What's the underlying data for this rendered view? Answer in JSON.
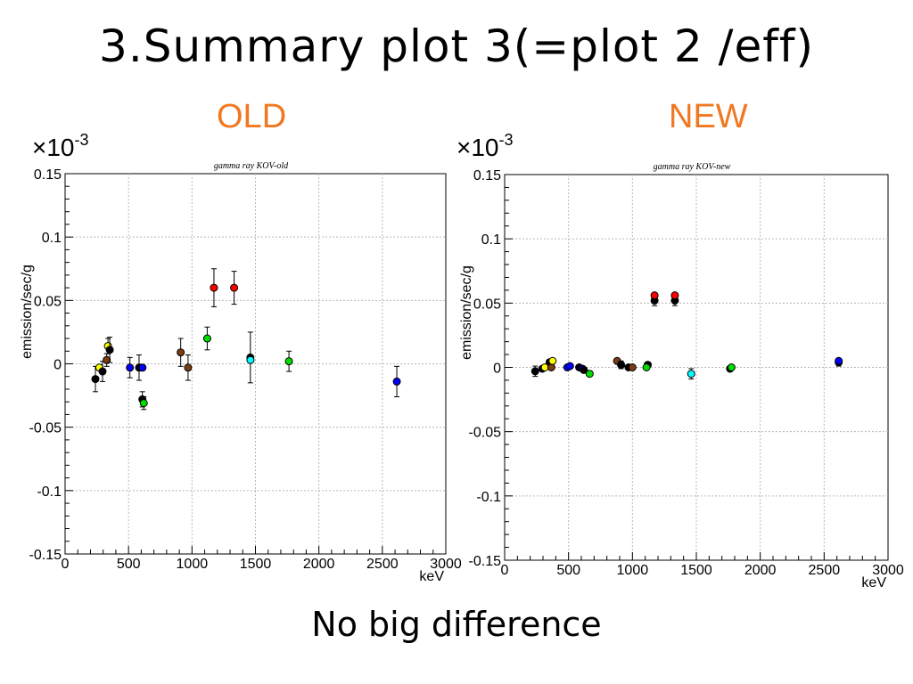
{
  "slide": {
    "title": "3.Summary plot 3(=plot 2 /eff)",
    "footer": "No big difference",
    "colors": {
      "panel_label": "#f07820"
    }
  },
  "chart_data": [
    {
      "type": "scatter",
      "panel_label": "OLD",
      "multiplier": "×10",
      "multiplier_exp": "-3",
      "title": "gamma ray KOV-old",
      "xlabel": "keV",
      "ylabel": "emission/sec/g",
      "xlim": [
        0,
        3000
      ],
      "ylim": [
        -0.15,
        0.15
      ],
      "x_ticks": [
        0,
        500,
        1000,
        1500,
        2000,
        2500,
        3000
      ],
      "y_ticks": [
        0.15,
        0.1,
        0.05,
        0,
        -0.05,
        -0.1,
        -0.15
      ],
      "x_tick_labels": [
        "0",
        "500",
        "1000",
        "1500",
        "2000",
        "2500",
        "3000"
      ],
      "y_tick_labels": [
        "0.15",
        "0.1",
        "0.05",
        "0",
        "-0.05",
        "-0.1",
        "-0.15"
      ],
      "grid": true,
      "points": [
        {
          "x": 239,
          "y": -0.012,
          "err": 0.01,
          "color": "#000000"
        },
        {
          "x": 270,
          "y": -0.003,
          "err": 0,
          "color": "#ffff00"
        },
        {
          "x": 295,
          "y": -0.006,
          "err": 0.008,
          "color": "#000000"
        },
        {
          "x": 328,
          "y": 0.003,
          "err": 0.005,
          "color": "#7a3c12"
        },
        {
          "x": 338,
          "y": 0.014,
          "err": 0.006,
          "color": "#ffff00"
        },
        {
          "x": 352,
          "y": 0.011,
          "err": 0.01,
          "color": "#000000"
        },
        {
          "x": 511,
          "y": -0.003,
          "err": 0.008,
          "color": "#0000ff"
        },
        {
          "x": 583,
          "y": -0.003,
          "err": 0.01,
          "color": "#000000"
        },
        {
          "x": 609,
          "y": -0.028,
          "err": 0.006,
          "color": "#000000"
        },
        {
          "x": 610,
          "y": -0.003,
          "err": 0,
          "color": "#0000ff"
        },
        {
          "x": 620,
          "y": -0.031,
          "err": 0.005,
          "color": "#00dd00"
        },
        {
          "x": 911,
          "y": 0.009,
          "err": 0.011,
          "color": "#7a3c12"
        },
        {
          "x": 969,
          "y": -0.003,
          "err": 0.01,
          "color": "#7a3c12"
        },
        {
          "x": 1120,
          "y": 0.02,
          "err": 0.009,
          "color": "#00dd00"
        },
        {
          "x": 1173,
          "y": 0.06,
          "err": 0.015,
          "color": "#ff0000"
        },
        {
          "x": 1332,
          "y": 0.06,
          "err": 0.013,
          "color": "#ff0000"
        },
        {
          "x": 1460,
          "y": 0.005,
          "err": 0.02,
          "color": "#000000"
        },
        {
          "x": 1461,
          "y": 0.003,
          "err": 0,
          "color": "#00ffff"
        },
        {
          "x": 1764,
          "y": 0.002,
          "err": 0.008,
          "color": "#00dd00"
        },
        {
          "x": 2614,
          "y": -0.014,
          "err": 0.012,
          "color": "#0000ff"
        }
      ]
    },
    {
      "type": "scatter",
      "panel_label": "NEW",
      "multiplier": "×10",
      "multiplier_exp": "-3",
      "title": "gamma ray KOV-new",
      "xlabel": "keV",
      "ylabel": "emission/sec/g",
      "xlim": [
        0,
        3000
      ],
      "ylim": [
        -0.15,
        0.15
      ],
      "x_ticks": [
        0,
        500,
        1000,
        1500,
        2000,
        2500,
        3000
      ],
      "y_ticks": [
        0.15,
        0.1,
        0.05,
        0,
        -0.05,
        -0.1,
        -0.15
      ],
      "x_tick_labels": [
        "0",
        "500",
        "1000",
        "1500",
        "2000",
        "2500",
        "3000"
      ],
      "y_tick_labels": [
        "0.15",
        "0.1",
        "0.05",
        "0",
        "-0.05",
        "-0.1",
        "-0.15"
      ],
      "grid": true,
      "points": [
        {
          "x": 239,
          "y": -0.003,
          "err": 0.004,
          "color": "#000000"
        },
        {
          "x": 295,
          "y": -0.001,
          "err": 0,
          "color": "#000000"
        },
        {
          "x": 315,
          "y": 0.0,
          "err": 0,
          "color": "#ffff00"
        },
        {
          "x": 352,
          "y": 0.004,
          "err": 0.002,
          "color": "#000000"
        },
        {
          "x": 365,
          "y": 0.0,
          "err": 0,
          "color": "#7a3c12"
        },
        {
          "x": 375,
          "y": 0.005,
          "err": 0,
          "color": "#ffff00"
        },
        {
          "x": 490,
          "y": 0.0,
          "err": 0,
          "color": "#0000ff"
        },
        {
          "x": 511,
          "y": 0.001,
          "err": 0,
          "color": "#0000ff"
        },
        {
          "x": 583,
          "y": 0.0,
          "err": 0,
          "color": "#000000"
        },
        {
          "x": 609,
          "y": -0.001,
          "err": 0,
          "color": "#0000ff"
        },
        {
          "x": 620,
          "y": -0.002,
          "err": 0,
          "color": "#000000"
        },
        {
          "x": 665,
          "y": -0.005,
          "err": 0,
          "color": "#00dd00"
        },
        {
          "x": 880,
          "y": 0.005,
          "err": 0,
          "color": "#7a3c12"
        },
        {
          "x": 911,
          "y": 0.002,
          "err": 0.003,
          "color": "#000000"
        },
        {
          "x": 969,
          "y": 0.0,
          "err": 0,
          "color": "#000000"
        },
        {
          "x": 1000,
          "y": 0.0,
          "err": 0,
          "color": "#7a3c12"
        },
        {
          "x": 1120,
          "y": 0.002,
          "err": 0,
          "color": "#000000"
        },
        {
          "x": 1110,
          "y": 0.0,
          "err": 0,
          "color": "#00dd00"
        },
        {
          "x": 1173,
          "y": 0.052,
          "err": 0.004,
          "color": "#000000"
        },
        {
          "x": 1173,
          "y": 0.056,
          "err": 0,
          "color": "#ff0000"
        },
        {
          "x": 1332,
          "y": 0.052,
          "err": 0.004,
          "color": "#000000"
        },
        {
          "x": 1332,
          "y": 0.056,
          "err": 0,
          "color": "#ff0000"
        },
        {
          "x": 1460,
          "y": -0.005,
          "err": 0.004,
          "color": "#00ffff"
        },
        {
          "x": 1764,
          "y": -0.001,
          "err": 0,
          "color": "#000000"
        },
        {
          "x": 1775,
          "y": 0.0,
          "err": 0,
          "color": "#00dd00"
        },
        {
          "x": 2614,
          "y": 0.004,
          "err": 0.003,
          "color": "#000000"
        },
        {
          "x": 2614,
          "y": 0.005,
          "err": 0,
          "color": "#0000ff"
        }
      ]
    }
  ]
}
